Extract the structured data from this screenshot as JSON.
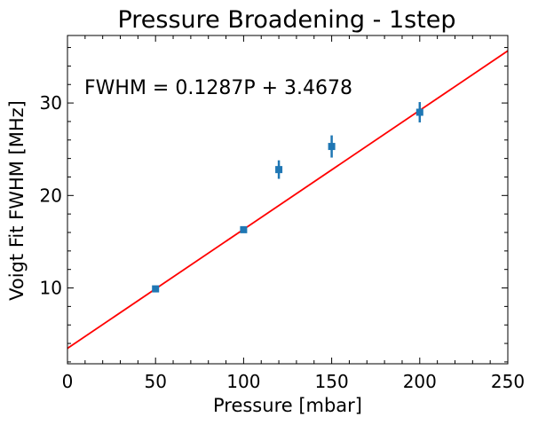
{
  "chart_data": {
    "type": "scatter",
    "title": "Pressure Broadening - 1step",
    "xlabel": "Pressure [mbar]",
    "ylabel": "Voigt Fit FWHM [MHz]",
    "xlim": [
      0,
      250
    ],
    "ylim": [
      1.8,
      37.3
    ],
    "x_ticks": [
      0,
      50,
      100,
      150,
      200,
      250
    ],
    "x_tick_labels": [
      "0",
      "50",
      "100",
      "150",
      "200",
      "250"
    ],
    "y_ticks": [
      10,
      20,
      30
    ],
    "y_tick_labels": [
      "10",
      "20",
      "30"
    ],
    "grid": false,
    "points": {
      "color": "#1f77b4",
      "x": [
        50,
        100,
        120,
        150,
        200
      ],
      "y": [
        9.9,
        16.3,
        22.8,
        25.3,
        29.0
      ],
      "yerr": [
        0.35,
        0.35,
        1.0,
        1.2,
        1.1
      ]
    },
    "fit_line": {
      "color": "#ff0000",
      "slope": 0.1287,
      "intercept": 3.4678
    },
    "annotation": "FWHM = 0.1287P + 3.4678"
  }
}
